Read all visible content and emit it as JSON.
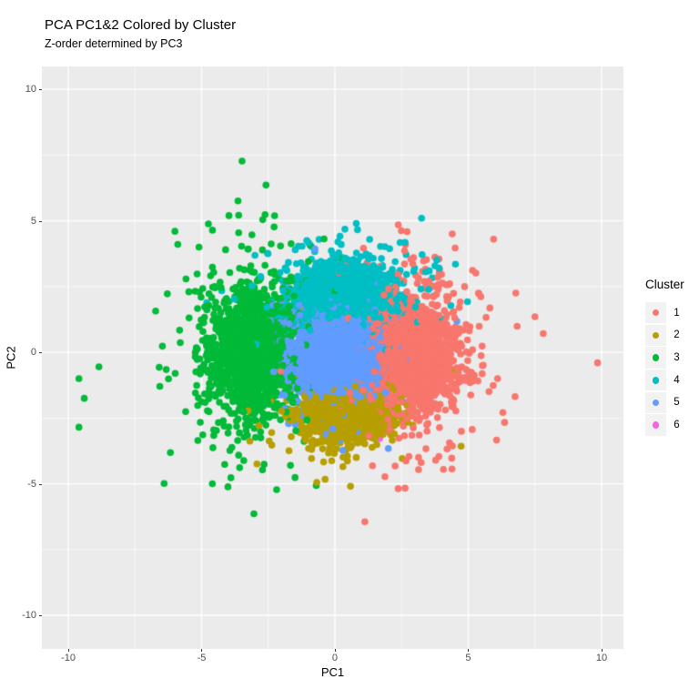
{
  "title": "PCA PC1&2 Colored by Cluster",
  "subtitle": "Z-order determined by PC3",
  "legend": {
    "title": "Cluster",
    "items": [
      {
        "label": "1",
        "color": "#F8766D"
      },
      {
        "label": "2",
        "color": "#B79F00"
      },
      {
        "label": "3",
        "color": "#00BA38"
      },
      {
        "label": "4",
        "color": "#00BFC4"
      },
      {
        "label": "5",
        "color": "#619CFF"
      },
      {
        "label": "6",
        "color": "#F564E3"
      }
    ]
  },
  "chart_data": {
    "type": "scatter",
    "title": "PCA PC1&2 Colored by Cluster",
    "subtitle": "Z-order determined by PC3",
    "xlabel": "PC1",
    "ylabel": "PC2",
    "xlim": [
      -10.99,
      10.82
    ],
    "ylim": [
      -11.28,
      10.87
    ],
    "x_ticks": [
      -10,
      -5,
      0,
      5,
      10
    ],
    "y_ticks": [
      -10,
      -5,
      0,
      5,
      10
    ],
    "minor_grid_x": [
      -7.5,
      -2.5,
      2.5,
      7.5
    ],
    "minor_grid_y": [
      -7.5,
      -2.5,
      2.5,
      7.5
    ],
    "grid": true,
    "legend_position": "right",
    "panel_bg": "#EBEBEB",
    "grid_color": "#FFFFFF",
    "point_radius_px": 3.8,
    "clusters": [
      {
        "name": "1",
        "color": "#F8766D",
        "n": 1800,
        "center": [
          2.95,
          -0.05
        ],
        "sd": [
          0.8,
          1.0
        ],
        "halo_frac": 0.22,
        "halo_mult": 1.9,
        "seed": 101,
        "z_scale": 1,
        "outliers": [
          [
            9.85,
            -0.4
          ],
          [
            7.5,
            1.35
          ],
          [
            5.95,
            4.3
          ],
          [
            4.4,
            4.5
          ],
          [
            6.1,
            -1.0
          ]
        ]
      },
      {
        "name": "2",
        "color": "#B79F00",
        "n": 900,
        "center": [
          0.35,
          -2.4
        ],
        "sd": [
          0.85,
          0.55
        ],
        "halo_frac": 0.15,
        "halo_mult": 1.8,
        "seed": 102,
        "z_scale": 1,
        "outliers": [
          [
            -0.68,
            -4.95
          ],
          [
            0.8,
            -4.0
          ],
          [
            0.3,
            -4.35
          ]
        ]
      },
      {
        "name": "3",
        "color": "#00BA38",
        "n": 1600,
        "center": [
          -3.15,
          0.0
        ],
        "sd": [
          0.78,
          1.15
        ],
        "halo_frac": 0.2,
        "halo_mult": 2.0,
        "seed": 103,
        "z_scale": 1,
        "outliers": [
          [
            -9.6,
            -1.0
          ],
          [
            -8.85,
            -0.55
          ],
          [
            -9.4,
            -1.75
          ],
          [
            -9.6,
            -2.85
          ],
          [
            -6.0,
            4.6
          ],
          [
            -4.1,
            3.9
          ]
        ]
      },
      {
        "name": "4",
        "color": "#00BFC4",
        "n": 1900,
        "center": [
          0.35,
          2.25
        ],
        "sd": [
          0.85,
          0.55
        ],
        "halo_frac": 0.15,
        "halo_mult": 1.9,
        "seed": 104,
        "z_scale": 1,
        "outliers": [
          [
            3.25,
            5.1
          ],
          [
            0.8,
            4.9
          ]
        ]
      },
      {
        "name": "5",
        "color": "#619CFF",
        "n": 2800,
        "center": [
          0.0,
          -0.05
        ],
        "sd": [
          0.8,
          0.8
        ],
        "halo_frac": 0.1,
        "halo_mult": 1.6,
        "seed": 105,
        "z_scale": 1,
        "outliers": []
      },
      {
        "name": "6",
        "color": "#F564E3",
        "n": 70,
        "center": [
          1.0,
          -2.2
        ],
        "sd": [
          0.5,
          0.5
        ],
        "halo_frac": 0,
        "halo_mult": 1,
        "seed": 106,
        "z_scale": 0.25,
        "outliers": []
      }
    ]
  }
}
